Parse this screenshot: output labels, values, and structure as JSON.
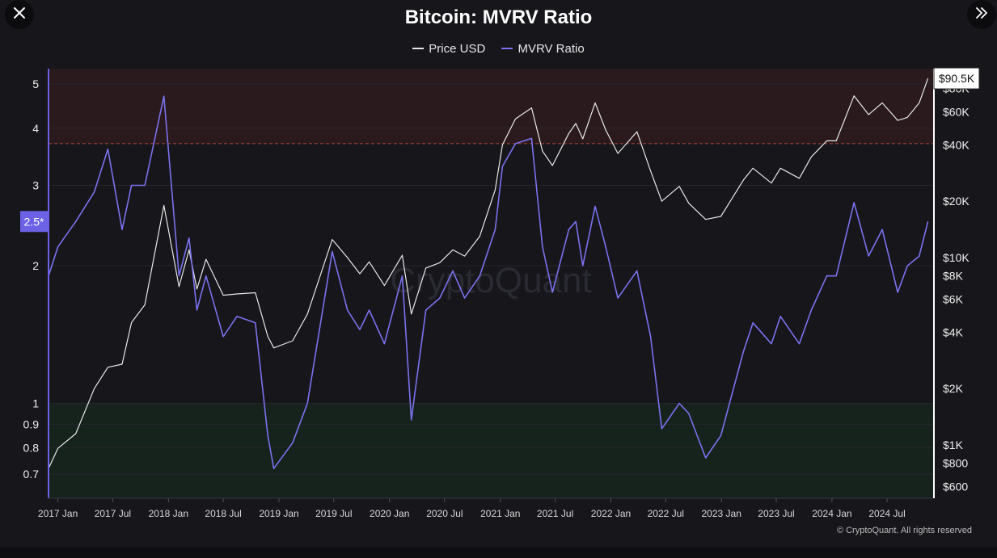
{
  "header": {
    "close_icon": "close-icon",
    "expand_icon": "double-chevron-right-icon"
  },
  "footer": {
    "copyright": "© CryptoQuant. All rights reserved"
  },
  "watermark": "CryptoQuant",
  "chart_data": {
    "type": "line",
    "title": "Bitcoin: MVRV Ratio",
    "legend": [
      {
        "name": "Price USD",
        "color": "#e8e8e8"
      },
      {
        "name": "MVRV Ratio",
        "color": "#7b72ee"
      }
    ],
    "legend_placement": "top-center",
    "x_ticks": [
      "2017 Jan",
      "2017 Jul",
      "2018 Jan",
      "2018 Jul",
      "2019 Jan",
      "2019 Jul",
      "2020 Jan",
      "2020 Jul",
      "2021 Jan",
      "2021 Jul",
      "2022 Jan",
      "2022 Jul",
      "2023 Jan",
      "2023 Jul",
      "2024 Jan",
      "2024 Jul"
    ],
    "x_range": [
      "2016-12-01",
      "2024-11-30"
    ],
    "left_axis": {
      "scale": "log",
      "range": [
        0.62,
        5.4
      ],
      "ticks": [
        "5",
        "4",
        "3",
        "2",
        "1",
        "0.9",
        "0.8",
        "0.7"
      ],
      "tick_values": [
        5,
        4,
        3,
        2,
        1,
        0.9,
        0.8,
        0.7
      ]
    },
    "right_axis": {
      "scale": "log",
      "range": [
        520,
        102000
      ],
      "ticks": [
        "$80K",
        "$60K",
        "$40K",
        "$20K",
        "$10K",
        "$8K",
        "$6K",
        "$4K",
        "$2K",
        "$1K",
        "$800",
        "$600"
      ],
      "tick_values": [
        80000,
        60000,
        40000,
        20000,
        10000,
        8000,
        6000,
        4000,
        2000,
        1000,
        800,
        600
      ]
    },
    "zones": [
      {
        "name": "overvalued",
        "from": 3.7,
        "to": 5.4,
        "color": "#2b1a1d",
        "line_color": "#b0453f"
      },
      {
        "name": "undervalued",
        "from": 0.62,
        "to": 1.0,
        "color": "#16231d",
        "line_color": "#2f7a3e"
      }
    ],
    "current_labels": {
      "mvrv": "2.5*",
      "price": "$90.5K"
    },
    "series": [
      {
        "name": "Price USD",
        "color": "#e8e8e8",
        "x": [
          "2016-12-01",
          "2017-01-01",
          "2017-03-01",
          "2017-05-01",
          "2017-06-15",
          "2017-08-01",
          "2017-09-01",
          "2017-10-15",
          "2017-12-17",
          "2018-02-05",
          "2018-03-10",
          "2018-04-05",
          "2018-05-05",
          "2018-07-01",
          "2018-08-15",
          "2018-10-15",
          "2018-11-25",
          "2018-12-15",
          "2019-02-15",
          "2019-04-05",
          "2019-06-26",
          "2019-08-15",
          "2019-09-25",
          "2019-10-26",
          "2019-12-15",
          "2020-02-12",
          "2020-03-13",
          "2020-04-30",
          "2020-06-15",
          "2020-07-28",
          "2020-09-05",
          "2020-10-25",
          "2020-12-15",
          "2021-01-08",
          "2021-02-20",
          "2021-04-14",
          "2021-05-20",
          "2021-06-22",
          "2021-08-15",
          "2021-09-07",
          "2021-09-30",
          "2021-11-10",
          "2021-12-15",
          "2022-01-24",
          "2022-03-28",
          "2022-05-12",
          "2022-06-18",
          "2022-08-15",
          "2022-09-15",
          "2022-11-10",
          "2022-12-30",
          "2023-03-15",
          "2023-04-15",
          "2023-06-15",
          "2023-07-15",
          "2023-09-15",
          "2023-10-25",
          "2023-12-15",
          "2024-01-15",
          "2024-03-14",
          "2024-05-01",
          "2024-06-15",
          "2024-08-05",
          "2024-09-06",
          "2024-10-15",
          "2024-11-13"
        ],
        "values": [
          750,
          960,
          1150,
          2000,
          2600,
          2700,
          4500,
          5600,
          19000,
          7000,
          11000,
          6800,
          9800,
          6300,
          6400,
          6500,
          3800,
          3300,
          3600,
          5000,
          12500,
          10000,
          8200,
          9500,
          7100,
          10300,
          5000,
          8800,
          9400,
          11000,
          10200,
          13000,
          23000,
          40000,
          55000,
          63000,
          37000,
          31000,
          46000,
          52000,
          43000,
          67000,
          48000,
          36000,
          47000,
          29000,
          20000,
          24000,
          19500,
          16000,
          16600,
          26000,
          30000,
          25000,
          30000,
          26500,
          34500,
          42000,
          42000,
          73000,
          58000,
          67000,
          54000,
          56000,
          67000,
          90500
        ]
      },
      {
        "name": "MVRV Ratio",
        "color": "#7b72ee",
        "x": [
          "2016-12-01",
          "2017-01-01",
          "2017-03-01",
          "2017-05-01",
          "2017-06-15",
          "2017-08-01",
          "2017-09-01",
          "2017-10-15",
          "2017-12-17",
          "2018-02-05",
          "2018-03-10",
          "2018-04-05",
          "2018-05-05",
          "2018-07-01",
          "2018-08-15",
          "2018-10-15",
          "2018-11-25",
          "2018-12-15",
          "2019-02-15",
          "2019-04-05",
          "2019-06-26",
          "2019-08-15",
          "2019-09-25",
          "2019-10-26",
          "2019-12-15",
          "2020-02-12",
          "2020-03-13",
          "2020-04-30",
          "2020-06-15",
          "2020-07-28",
          "2020-09-05",
          "2020-10-25",
          "2020-12-15",
          "2021-01-08",
          "2021-02-20",
          "2021-04-14",
          "2021-05-20",
          "2021-06-22",
          "2021-08-15",
          "2021-09-07",
          "2021-09-30",
          "2021-11-10",
          "2021-12-15",
          "2022-01-24",
          "2022-03-28",
          "2022-05-12",
          "2022-06-18",
          "2022-08-15",
          "2022-09-15",
          "2022-11-10",
          "2022-12-30",
          "2023-03-15",
          "2023-04-15",
          "2023-06-15",
          "2023-07-15",
          "2023-09-15",
          "2023-10-25",
          "2023-12-15",
          "2024-01-15",
          "2024-03-14",
          "2024-05-01",
          "2024-06-15",
          "2024-08-05",
          "2024-09-06",
          "2024-10-15",
          "2024-11-13"
        ],
        "values": [
          1.9,
          2.2,
          2.5,
          2.9,
          3.6,
          2.4,
          3.0,
          3.0,
          4.7,
          1.9,
          2.3,
          1.6,
          1.9,
          1.4,
          1.55,
          1.5,
          0.85,
          0.72,
          0.82,
          1.0,
          2.15,
          1.6,
          1.45,
          1.6,
          1.35,
          1.9,
          0.92,
          1.6,
          1.7,
          1.95,
          1.7,
          1.9,
          2.4,
          3.3,
          3.7,
          3.8,
          2.2,
          1.75,
          2.4,
          2.5,
          2.0,
          2.7,
          2.2,
          1.7,
          1.95,
          1.4,
          0.88,
          1.0,
          0.95,
          0.76,
          0.85,
          1.3,
          1.5,
          1.35,
          1.55,
          1.35,
          1.6,
          1.9,
          1.9,
          2.75,
          2.1,
          2.4,
          1.75,
          2.0,
          2.1,
          2.5
        ]
      }
    ]
  }
}
